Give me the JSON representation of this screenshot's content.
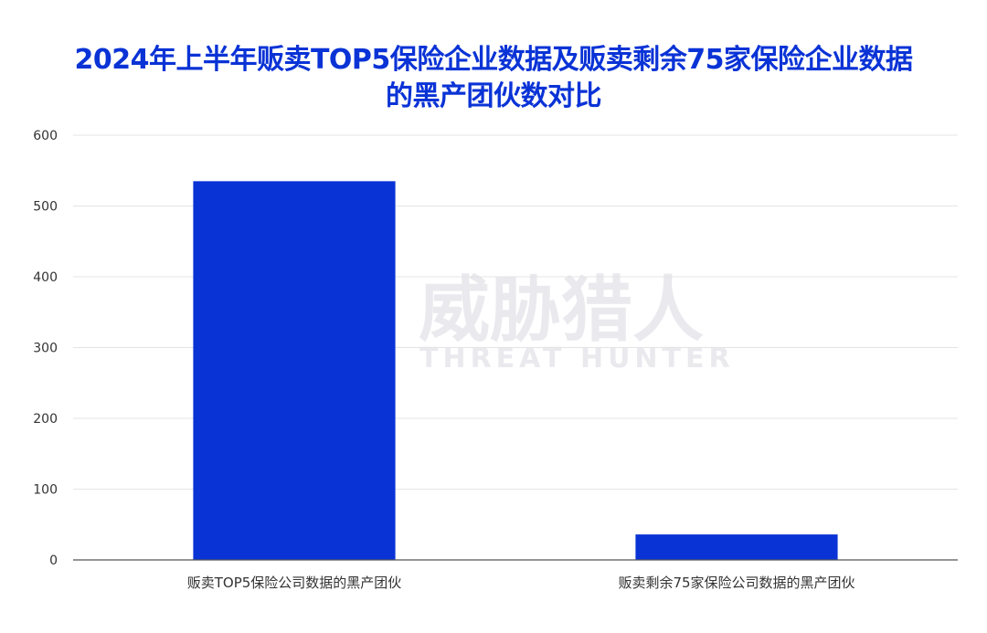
{
  "chart_data": {
    "type": "bar",
    "title": "2024年上半年贩卖TOP5保险企业数据及贩卖剩余75家保险企业数据的黑产团伙数对比",
    "title_lines": [
      "2024年上半年贩卖TOP5保险企业数据及贩卖剩余75家保险企业数据",
      "的黑产团伙数对比"
    ],
    "categories": [
      "贩卖TOP5保险公司数据的黑产团伙",
      "贩卖剩余75家保险公司数据的黑产团伙"
    ],
    "values": [
      535,
      36
    ],
    "ylim": [
      0,
      600
    ],
    "yticks": [
      0,
      100,
      200,
      300,
      400,
      500,
      600
    ],
    "xlabel": "",
    "ylabel": "",
    "grid": true,
    "bar_color": "#0a33d6",
    "title_color": "#0a33d6"
  },
  "watermark": {
    "text_cn": "威胁猎人",
    "text_en": "THREAT HUNTER",
    "icon": "shield-logo-icon"
  }
}
